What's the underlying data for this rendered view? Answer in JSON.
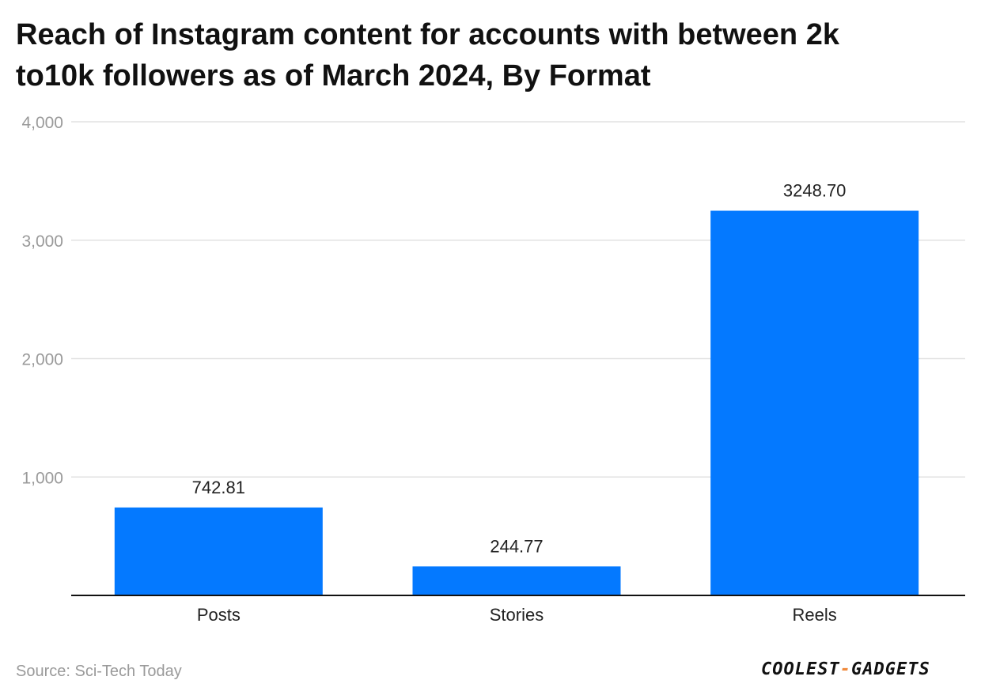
{
  "chart_data": {
    "type": "bar",
    "title_lines": [
      "Reach of Instagram content for accounts with between 2k",
      "to10k followers as of March 2024, By Format"
    ],
    "categories": [
      "Posts",
      "Stories",
      "Reels"
    ],
    "values": [
      742.81,
      244.77,
      3248.7
    ],
    "value_labels": [
      "742.81",
      "244.77",
      "3248.70"
    ],
    "y_ticks": [
      1000,
      2000,
      3000,
      4000
    ],
    "y_tick_labels": [
      "1,000",
      "2,000",
      "3,000",
      "4,000"
    ],
    "ylim": [
      0,
      4000
    ],
    "grid": true,
    "bar_color": "#0479ff",
    "gridline_color": "#e2e2e2",
    "axis_color": "#111111",
    "tick_label_color": "#9a9a9a"
  },
  "source": "Source: Sci-Tech Today",
  "logo": {
    "part1": "COOLEST",
    "separator": "-",
    "part2": "GADGETS"
  }
}
